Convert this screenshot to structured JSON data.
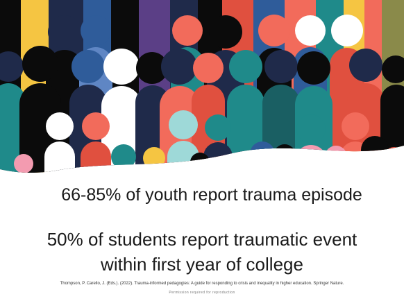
{
  "slide": {
    "statement_1": "66-85% of youth report trauma episode",
    "statement_2_line_1": "50% of students report traumatic event",
    "statement_2_line_2": "within first year of college",
    "citation": "Thompson, P. Carello, J. (Eds.). (2022). Trauma-informed pedagogies: A guide for responding to crisis and inequality in higher education. Springer Nature.",
    "permission": "Permission required for reproduction"
  },
  "illustration": {
    "subject": "crowd-of-people-icon",
    "colors": {
      "navy": "#1f2a4a",
      "black": "#0b0b0b",
      "coral": "#f26b5b",
      "teal": "#1f8a8a",
      "blue": "#2f5c9a",
      "light_blue": "#5f86c4",
      "white": "#ffffff",
      "cyan": "#9ed9d8",
      "yellow": "#f5c542",
      "pink": "#f39bb0",
      "red": "#e0503f",
      "olive": "#8a8a4a",
      "purple": "#5b3f86",
      "dark_teal": "#1a5f63"
    }
  }
}
